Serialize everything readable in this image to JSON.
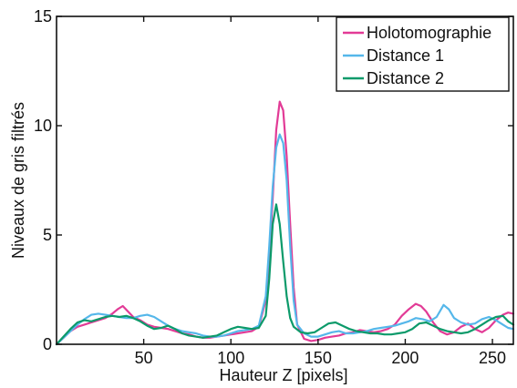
{
  "chart_data": {
    "type": "line",
    "title": "",
    "xlabel": "Hauteur Z [pixels]",
    "ylabel": "Niveaux de gris filtrés",
    "xlim": [
      0,
      262
    ],
    "ylim": [
      0,
      15
    ],
    "x_ticks": [
      50,
      100,
      150,
      200,
      250
    ],
    "y_ticks": [
      0,
      5,
      10,
      15
    ],
    "grid": false,
    "legend_position": "top-right",
    "series": [
      {
        "name": "Holotomographie",
        "color": "#e23b96",
        "points": [
          [
            0,
            0.0
          ],
          [
            4,
            0.3
          ],
          [
            8,
            0.6
          ],
          [
            12,
            0.8
          ],
          [
            16,
            0.9
          ],
          [
            20,
            1.0
          ],
          [
            24,
            1.1
          ],
          [
            28,
            1.2
          ],
          [
            32,
            1.4
          ],
          [
            35,
            1.6
          ],
          [
            38,
            1.75
          ],
          [
            41,
            1.5
          ],
          [
            44,
            1.25
          ],
          [
            48,
            1.1
          ],
          [
            52,
            0.9
          ],
          [
            56,
            0.8
          ],
          [
            60,
            0.75
          ],
          [
            64,
            0.7
          ],
          [
            68,
            0.6
          ],
          [
            72,
            0.5
          ],
          [
            76,
            0.45
          ],
          [
            80,
            0.35
          ],
          [
            84,
            0.3
          ],
          [
            88,
            0.3
          ],
          [
            92,
            0.35
          ],
          [
            96,
            0.4
          ],
          [
            100,
            0.45
          ],
          [
            104,
            0.5
          ],
          [
            108,
            0.55
          ],
          [
            112,
            0.6
          ],
          [
            116,
            0.8
          ],
          [
            120,
            2.0
          ],
          [
            122,
            4.0
          ],
          [
            124,
            6.7
          ],
          [
            126,
            9.8
          ],
          [
            128,
            11.1
          ],
          [
            130,
            10.7
          ],
          [
            132,
            8.6
          ],
          [
            134,
            5.5
          ],
          [
            136,
            2.6
          ],
          [
            138,
            0.9
          ],
          [
            142,
            0.25
          ],
          [
            146,
            0.15
          ],
          [
            150,
            0.2
          ],
          [
            154,
            0.3
          ],
          [
            158,
            0.35
          ],
          [
            162,
            0.4
          ],
          [
            166,
            0.5
          ],
          [
            170,
            0.55
          ],
          [
            174,
            0.65
          ],
          [
            178,
            0.6
          ],
          [
            182,
            0.55
          ],
          [
            186,
            0.6
          ],
          [
            190,
            0.7
          ],
          [
            194,
            0.9
          ],
          [
            198,
            1.3
          ],
          [
            202,
            1.6
          ],
          [
            206,
            1.85
          ],
          [
            209,
            1.75
          ],
          [
            212,
            1.5
          ],
          [
            216,
            1.0
          ],
          [
            220,
            0.6
          ],
          [
            224,
            0.45
          ],
          [
            228,
            0.55
          ],
          [
            232,
            0.8
          ],
          [
            236,
            0.95
          ],
          [
            240,
            0.7
          ],
          [
            244,
            0.55
          ],
          [
            248,
            0.75
          ],
          [
            252,
            1.1
          ],
          [
            256,
            1.35
          ],
          [
            259,
            1.45
          ],
          [
            262,
            1.4
          ]
        ]
      },
      {
        "name": "Distance 1",
        "color": "#55b7ea",
        "points": [
          [
            0,
            0.0
          ],
          [
            4,
            0.3
          ],
          [
            8,
            0.6
          ],
          [
            12,
            0.9
          ],
          [
            16,
            1.15
          ],
          [
            20,
            1.35
          ],
          [
            24,
            1.4
          ],
          [
            28,
            1.35
          ],
          [
            32,
            1.3
          ],
          [
            36,
            1.25
          ],
          [
            40,
            1.2
          ],
          [
            44,
            1.2
          ],
          [
            48,
            1.3
          ],
          [
            52,
            1.35
          ],
          [
            56,
            1.25
          ],
          [
            60,
            1.05
          ],
          [
            64,
            0.85
          ],
          [
            68,
            0.7
          ],
          [
            72,
            0.6
          ],
          [
            76,
            0.55
          ],
          [
            80,
            0.5
          ],
          [
            84,
            0.4
          ],
          [
            88,
            0.35
          ],
          [
            92,
            0.35
          ],
          [
            96,
            0.4
          ],
          [
            100,
            0.5
          ],
          [
            104,
            0.6
          ],
          [
            108,
            0.65
          ],
          [
            112,
            0.7
          ],
          [
            116,
            0.85
          ],
          [
            120,
            2.2
          ],
          [
            122,
            4.5
          ],
          [
            124,
            7.2
          ],
          [
            126,
            9.0
          ],
          [
            128,
            9.6
          ],
          [
            130,
            9.2
          ],
          [
            132,
            7.5
          ],
          [
            134,
            4.5
          ],
          [
            136,
            2.0
          ],
          [
            138,
            0.9
          ],
          [
            142,
            0.5
          ],
          [
            146,
            0.35
          ],
          [
            150,
            0.35
          ],
          [
            154,
            0.45
          ],
          [
            158,
            0.55
          ],
          [
            162,
            0.6
          ],
          [
            166,
            0.5
          ],
          [
            170,
            0.5
          ],
          [
            174,
            0.55
          ],
          [
            178,
            0.6
          ],
          [
            182,
            0.7
          ],
          [
            186,
            0.75
          ],
          [
            190,
            0.8
          ],
          [
            194,
            0.85
          ],
          [
            198,
            0.95
          ],
          [
            202,
            1.05
          ],
          [
            206,
            1.2
          ],
          [
            210,
            1.15
          ],
          [
            214,
            1.05
          ],
          [
            218,
            1.25
          ],
          [
            222,
            1.8
          ],
          [
            225,
            1.6
          ],
          [
            228,
            1.2
          ],
          [
            232,
            1.0
          ],
          [
            236,
            0.9
          ],
          [
            240,
            0.95
          ],
          [
            244,
            1.15
          ],
          [
            248,
            1.25
          ],
          [
            252,
            1.1
          ],
          [
            256,
            0.9
          ],
          [
            259,
            0.75
          ],
          [
            262,
            0.7
          ]
        ]
      },
      {
        "name": "Distance 2",
        "color": "#0c9a6a",
        "points": [
          [
            0,
            0.0
          ],
          [
            4,
            0.35
          ],
          [
            8,
            0.7
          ],
          [
            12,
            1.0
          ],
          [
            16,
            1.1
          ],
          [
            20,
            1.05
          ],
          [
            24,
            1.15
          ],
          [
            28,
            1.25
          ],
          [
            32,
            1.3
          ],
          [
            36,
            1.25
          ],
          [
            40,
            1.3
          ],
          [
            44,
            1.2
          ],
          [
            48,
            1.05
          ],
          [
            52,
            0.85
          ],
          [
            56,
            0.7
          ],
          [
            60,
            0.75
          ],
          [
            64,
            0.85
          ],
          [
            68,
            0.7
          ],
          [
            72,
            0.5
          ],
          [
            76,
            0.4
          ],
          [
            80,
            0.35
          ],
          [
            84,
            0.3
          ],
          [
            88,
            0.35
          ],
          [
            92,
            0.4
          ],
          [
            96,
            0.55
          ],
          [
            100,
            0.7
          ],
          [
            104,
            0.8
          ],
          [
            108,
            0.75
          ],
          [
            112,
            0.7
          ],
          [
            116,
            0.75
          ],
          [
            120,
            1.3
          ],
          [
            122,
            3.0
          ],
          [
            124,
            5.5
          ],
          [
            126,
            6.4
          ],
          [
            128,
            5.5
          ],
          [
            130,
            3.8
          ],
          [
            132,
            2.2
          ],
          [
            134,
            1.2
          ],
          [
            136,
            0.8
          ],
          [
            140,
            0.55
          ],
          [
            144,
            0.5
          ],
          [
            148,
            0.55
          ],
          [
            152,
            0.75
          ],
          [
            156,
            0.95
          ],
          [
            160,
            1.0
          ],
          [
            164,
            0.85
          ],
          [
            168,
            0.7
          ],
          [
            172,
            0.6
          ],
          [
            176,
            0.55
          ],
          [
            180,
            0.5
          ],
          [
            184,
            0.5
          ],
          [
            188,
            0.45
          ],
          [
            192,
            0.45
          ],
          [
            196,
            0.5
          ],
          [
            200,
            0.55
          ],
          [
            204,
            0.7
          ],
          [
            208,
            0.95
          ],
          [
            212,
            1.0
          ],
          [
            216,
            0.85
          ],
          [
            220,
            0.7
          ],
          [
            224,
            0.6
          ],
          [
            228,
            0.55
          ],
          [
            232,
            0.5
          ],
          [
            236,
            0.55
          ],
          [
            240,
            0.7
          ],
          [
            244,
            0.9
          ],
          [
            248,
            1.1
          ],
          [
            252,
            1.25
          ],
          [
            256,
            1.3
          ],
          [
            259,
            1.05
          ],
          [
            262,
            0.9
          ]
        ]
      }
    ]
  }
}
